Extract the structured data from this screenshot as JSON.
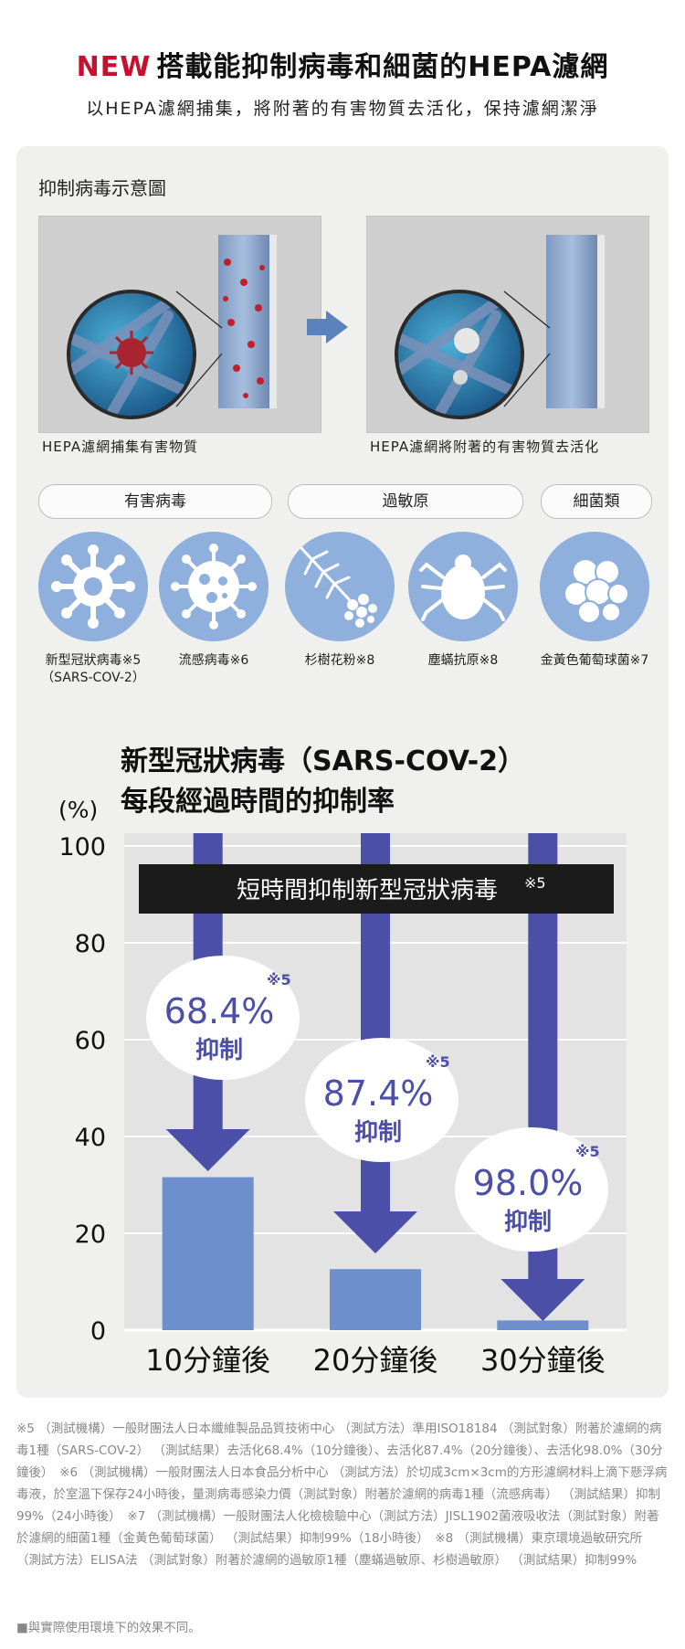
{
  "header": {
    "new_tag": "NEW",
    "title": "搭載能抑制病毒和細菌的HEPA濾網",
    "subtitle": "以HEPA濾網捕集，將附著的有害物質去活化，保持濾網潔淨"
  },
  "diagram": {
    "heading": "抑制病毒示意圖",
    "left_caption": "HEPA濾網捕集有害物質",
    "right_caption": "HEPA濾網將附著的有害物質去活化"
  },
  "categories": [
    {
      "label": "有害病毒"
    },
    {
      "label": "過敏原"
    },
    {
      "label": "細菌類"
    }
  ],
  "targets": [
    {
      "label": "新型冠狀病毒※5",
      "sub": "（SARS-COV-2）",
      "icon": "coronavirus-icon"
    },
    {
      "label": "流感病毒※6",
      "sub": "",
      "icon": "influenza-virus-icon"
    },
    {
      "label": "杉樹花粉※8",
      "sub": "",
      "icon": "cedar-pollen-icon"
    },
    {
      "label": "塵蟎抗原※8",
      "sub": "",
      "icon": "dust-mite-icon"
    },
    {
      "label": "金黃色葡萄球菌※7",
      "sub": "",
      "icon": "staphylococcus-icon"
    }
  ],
  "chart_data": {
    "type": "bar",
    "title": "新型冠狀病毒（SARS-COV-2）\n每段經過時間的抑制率",
    "title_lines": [
      "新型冠狀病毒（SARS-COV-2）",
      "每段經過時間的抑制率"
    ],
    "ylabel": "(%)",
    "ylim": [
      0,
      100
    ],
    "yticks": [
      "100",
      "80",
      "60",
      "40",
      "20",
      "0"
    ],
    "categories": [
      "10分鐘後",
      "20分鐘後",
      "30分鐘後"
    ],
    "values": [
      31.6,
      12.6,
      2.0
    ],
    "banner": "短時間抑制新型冠狀病毒",
    "banner_note": "※5",
    "annotations": [
      {
        "value": "68.4%",
        "label": "抑制",
        "note": "※5"
      },
      {
        "value": "87.4%",
        "label": "抑制",
        "note": "※5"
      },
      {
        "value": "98.0%",
        "label": "抑制",
        "note": "※5"
      }
    ],
    "grid": true,
    "colors": {
      "bar": "#6d8fcb",
      "arrow": "#4b4fa8",
      "plot_bg": "#e3e3e3",
      "banner": "#1b1b1b",
      "annotation_text": "#4b4fa8"
    }
  },
  "footnotes": {
    "text": "※5 （測試機構）一般財團法人日本纖維製品品質技術中心 （測試方法）準用ISO18184 （測試對象）附著於濾網的病毒1種（SARS-COV-2） （測試結果）去活化68.4%（10分鐘後）、去活化87.4%（20分鐘後）、去活化98.0%（30分鐘後）　※6 （測試機構）一般財團法人日本食品分析中心 （測試方法）於切成3cm×3cm的方形濾網材料上滴下懸浮病毒液，於室溫下保存24小時後，量測病毒感染力價（測試對象）附著於濾網的病毒1種（流感病毒） （測試結果）抑制99%（24小時後）　※7 （測試機構）一般財團法人化檢檢驗中心（測試方法）JISL1902菌液吸收法（測試對象）附著於濾網的細菌1種（金黃色葡萄球菌） （測試結果）抑制99%（18小時後）　※8 （測試機構）東京環境過敏研究所 （測試方法）ELISA法 （測試對象）附著於濾網的過敏原1種（塵蟎過敏原、杉樹過敏原） （測試結果）抑制99%",
    "disclaimer": "■與實際使用環境下的效果不同。"
  },
  "colors": {
    "brand_red": "#c8102e",
    "panel_bg": "#f0f0ef",
    "icon_circle": "#8fb0dc"
  }
}
